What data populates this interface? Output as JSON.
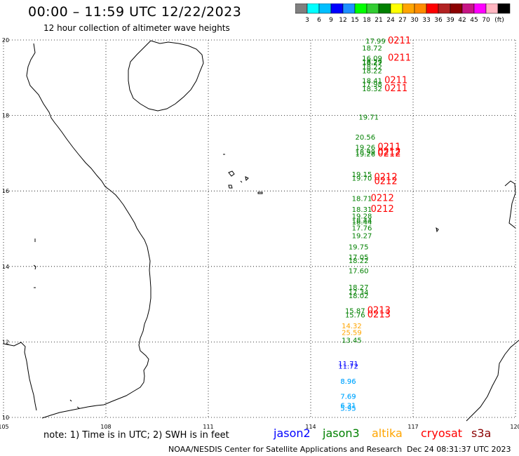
{
  "header": {
    "title": "00:00 – 11:59 UTC 12/22/2023",
    "subtitle": "12 hour collection of altimeter wave heights"
  },
  "colorbar": {
    "colors": [
      "#808080",
      "#00ffff",
      "#00bfff",
      "#0000ff",
      "#1e90ff",
      "#00ff00",
      "#32cd32",
      "#008000",
      "#ffff00",
      "#ffa500",
      "#ff8c00",
      "#ff0000",
      "#b22222",
      "#8b0000",
      "#c71585",
      "#ff00ff",
      "#ffb6c1",
      "#000000"
    ],
    "labels": [
      "3",
      "6",
      "9",
      "12",
      "15",
      "18",
      "21",
      "24",
      "27",
      "30",
      "33",
      "36",
      "39",
      "42",
      "45",
      "70"
    ],
    "unit": "(ft)"
  },
  "map": {
    "lon_range": [
      105,
      120
    ],
    "lat_range": [
      10,
      20
    ],
    "x_ticks": [
      "105",
      "108",
      "111",
      "114",
      "117",
      "120"
    ],
    "y_ticks": [
      "20",
      "18",
      "16",
      "14",
      "12",
      "10"
    ],
    "jason3_readings": [
      {
        "lon": 115.9,
        "lat": 19.91,
        "v": "17.99"
      },
      {
        "lon": 115.8,
        "lat": 19.72,
        "v": "18.72"
      },
      {
        "lon": 115.8,
        "lat": 19.45,
        "v": "16.09"
      },
      {
        "lon": 115.8,
        "lat": 19.36,
        "v": "18.29"
      },
      {
        "lon": 115.8,
        "lat": 19.33,
        "v": "18.27"
      },
      {
        "lon": 115.8,
        "lat": 19.22,
        "v": "18.22"
      },
      {
        "lon": 115.8,
        "lat": 19.12,
        "v": "18.22"
      },
      {
        "lon": 115.8,
        "lat": 18.86,
        "v": "18.41"
      },
      {
        "lon": 115.8,
        "lat": 18.76,
        "v": "17.98"
      },
      {
        "lon": 115.8,
        "lat": 18.64,
        "v": "18.32"
      },
      {
        "lon": 115.7,
        "lat": 17.89,
        "v": "19.71"
      },
      {
        "lon": 115.6,
        "lat": 17.36,
        "v": "20.56"
      },
      {
        "lon": 115.6,
        "lat": 17.09,
        "v": "19.26"
      },
      {
        "lon": 115.6,
        "lat": 16.96,
        "v": "18.99"
      },
      {
        "lon": 115.6,
        "lat": 16.91,
        "v": "19.26"
      },
      {
        "lon": 115.5,
        "lat": 16.38,
        "v": "19.15"
      },
      {
        "lon": 115.5,
        "lat": 16.27,
        "v": "19.70"
      },
      {
        "lon": 115.5,
        "lat": 15.73,
        "v": "18.71"
      },
      {
        "lon": 115.5,
        "lat": 15.45,
        "v": "18.31"
      },
      {
        "lon": 115.5,
        "lat": 15.27,
        "v": "19.28"
      },
      {
        "lon": 115.5,
        "lat": 15.16,
        "v": "18.44"
      },
      {
        "lon": 115.5,
        "lat": 15.11,
        "v": "18.44"
      },
      {
        "lon": 115.5,
        "lat": 14.95,
        "v": "17.76"
      },
      {
        "lon": 115.5,
        "lat": 14.75,
        "v": "19.27"
      },
      {
        "lon": 115.4,
        "lat": 14.45,
        "v": "19.75"
      },
      {
        "lon": 115.4,
        "lat": 14.18,
        "v": "17.05"
      },
      {
        "lon": 115.4,
        "lat": 14.09,
        "v": "18.22"
      },
      {
        "lon": 115.4,
        "lat": 13.82,
        "v": "17.60"
      },
      {
        "lon": 115.4,
        "lat": 13.38,
        "v": "18.27"
      },
      {
        "lon": 115.4,
        "lat": 13.25,
        "v": "17.34"
      },
      {
        "lon": 115.4,
        "lat": 13.16,
        "v": "18.02"
      },
      {
        "lon": 115.3,
        "lat": 12.76,
        "v": "15.87"
      },
      {
        "lon": 115.3,
        "lat": 12.65,
        "v": "15.76"
      },
      {
        "lon": 115.2,
        "lat": 11.98,
        "v": "13.45"
      }
    ],
    "cryosat_readings": [
      {
        "lon": 116.6,
        "lat": 19.91,
        "v": "0211"
      },
      {
        "lon": 116.6,
        "lat": 19.45,
        "v": "0211"
      },
      {
        "lon": 116.5,
        "lat": 18.86,
        "v": "0211"
      },
      {
        "lon": 116.5,
        "lat": 18.64,
        "v": "0211"
      },
      {
        "lon": 116.3,
        "lat": 17.09,
        "v": "0211"
      },
      {
        "lon": 116.3,
        "lat": 16.96,
        "v": "0212"
      },
      {
        "lon": 116.3,
        "lat": 16.91,
        "v": "0212"
      },
      {
        "lon": 116.2,
        "lat": 16.29,
        "v": "0212"
      },
      {
        "lon": 116.2,
        "lat": 16.18,
        "v": "0212"
      },
      {
        "lon": 116.1,
        "lat": 15.73,
        "v": "0212"
      },
      {
        "lon": 116.1,
        "lat": 15.45,
        "v": "0212"
      },
      {
        "lon": 116.0,
        "lat": 12.76,
        "v": "0213"
      },
      {
        "lon": 116.0,
        "lat": 12.65,
        "v": "0213"
      }
    ],
    "altika_readings": [
      {
        "lon": 115.2,
        "lat": 12.36,
        "v": "14.32"
      },
      {
        "lon": 115.2,
        "lat": 12.18,
        "v": "25.59"
      }
    ],
    "jason2_readings": [
      {
        "lon": 115.1,
        "lat": 11.36,
        "v": "11.71"
      },
      {
        "lon": 115.1,
        "lat": 11.29,
        "v": "11.72"
      },
      {
        "lon": 115.1,
        "lat": 10.89,
        "v": "8.96"
      },
      {
        "lon": 115.1,
        "lat": 10.49,
        "v": "7.69"
      },
      {
        "lon": 115.1,
        "lat": 10.25,
        "v": "6.31"
      },
      {
        "lon": 115.1,
        "lat": 10.18,
        "v": "5.95"
      }
    ],
    "colors": {
      "jason2": "#0000ff",
      "jason3": "#008000",
      "altika": "#ffa500",
      "cryosat": "#ff0000",
      "s3a": "#8b0000"
    }
  },
  "legend": {
    "note": "note: 1) Time is in UTC; 2) SWH is in feet",
    "jason2": "jason2",
    "jason3": "jason3",
    "altika": "altika",
    "cryosat": "cryosat",
    "s3a": "s3a"
  },
  "footer": {
    "credit": "NOAA/NESDIS Center for Satellite Applications and Research",
    "timestamp": "Dec 24 08:31:37 UTC 2023"
  }
}
